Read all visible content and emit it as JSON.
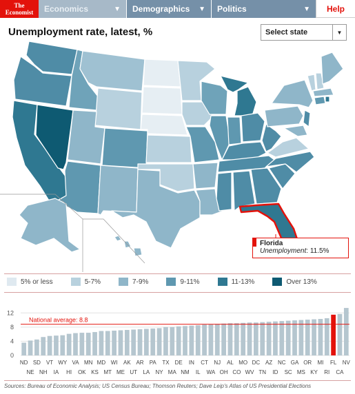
{
  "nav": {
    "logo_line1": "The",
    "logo_line2": "Economist",
    "tabs": [
      {
        "label": "Economics",
        "active": false
      },
      {
        "label": "Demographics",
        "active": true
      },
      {
        "label": "Politics",
        "active": true
      }
    ],
    "help_label": "Help"
  },
  "header": {
    "title": "Unemployment rate, latest, %",
    "select_label": "Select state"
  },
  "tooltip": {
    "state": "Florida",
    "label": "Unemployment",
    "value": "11.5%"
  },
  "legend": [
    {
      "label": "5% or less",
      "color": "#dfe9f0"
    },
    {
      "label": "5-7%",
      "color": "#b8d1de"
    },
    {
      "label": "7-9%",
      "color": "#8fb6c9"
    },
    {
      "label": "9-11%",
      "color": "#5f98b0"
    },
    {
      "label": "11-13%",
      "color": "#2f7891"
    },
    {
      "label": "Over 13%",
      "color": "#0e5a72"
    }
  ],
  "colors": {
    "accent": "#e3120b",
    "bar": "#b5c6cf",
    "highlight_bar": "#e3120b",
    "map_highlight": "#e3120b"
  },
  "chart_data": {
    "type": "bar",
    "title": "",
    "ylim": [
      0,
      14
    ],
    "yticks": [
      0,
      4,
      8,
      12
    ],
    "reference_line": {
      "label": "National average: 8.8",
      "value": 8.8
    },
    "highlight": "FL",
    "categories": [
      "ND",
      "NE",
      "SD",
      "NH",
      "VT",
      "IA",
      "WY",
      "HI",
      "VA",
      "OK",
      "MN",
      "KS",
      "MD",
      "MT",
      "WI",
      "ME",
      "AK",
      "UT",
      "AR",
      "LA",
      "PA",
      "NY",
      "TX",
      "MA",
      "DE",
      "NM",
      "IN",
      "IL",
      "CT",
      "WA",
      "NJ",
      "OH",
      "AL",
      "CO",
      "MO",
      "WV",
      "DC",
      "TN",
      "AZ",
      "ID",
      "NC",
      "SC",
      "GA",
      "MS",
      "OR",
      "KY",
      "MI",
      "RI",
      "FL",
      "CA",
      "NV"
    ],
    "values": [
      3.6,
      4.2,
      4.5,
      5.2,
      5.5,
      5.6,
      5.7,
      6.1,
      6.3,
      6.4,
      6.4,
      6.6,
      6.9,
      6.9,
      7.0,
      7.1,
      7.2,
      7.3,
      7.4,
      7.5,
      7.6,
      7.7,
      8.0,
      8.0,
      8.2,
      8.3,
      8.4,
      8.5,
      8.7,
      8.8,
      8.9,
      9.0,
      9.1,
      9.1,
      9.2,
      9.3,
      9.3,
      9.4,
      9.5,
      9.6,
      9.7,
      9.8,
      9.9,
      10.0,
      10.1,
      10.2,
      10.3,
      10.5,
      11.5,
      11.7,
      13.4
    ]
  },
  "footer": {
    "sources": "Sources: Bureau of Economic Analysis; US Census Bureau; Thomson Reuters; Dave Leip's Atlas of US Presidential Elections"
  }
}
